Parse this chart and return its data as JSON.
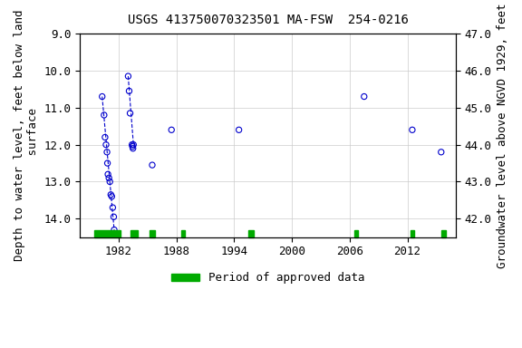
{
  "title": "USGS 413750070323501 MA-FSW  254-0216",
  "ylabel_left": "Depth to water level, feet below land\n surface",
  "ylabel_right": "Groundwater level above NGVD 1929, feet",
  "xlabel": "",
  "ylim_left": [
    14.5,
    9.0
  ],
  "ylim_right": [
    41.5,
    47.0
  ],
  "yticks_left": [
    9.0,
    10.0,
    11.0,
    12.0,
    13.0,
    14.0
  ],
  "yticks_right": [
    42.0,
    43.0,
    44.0,
    45.0,
    46.0,
    47.0
  ],
  "xlim": [
    1978,
    2017
  ],
  "xticks": [
    1982,
    1988,
    1994,
    2000,
    2006,
    2012
  ],
  "data_points": [
    [
      1980.3,
      10.7
    ],
    [
      1980.5,
      11.2
    ],
    [
      1980.6,
      11.8
    ],
    [
      1980.7,
      12.0
    ],
    [
      1980.8,
      12.2
    ],
    [
      1980.85,
      12.5
    ],
    [
      1980.9,
      12.8
    ],
    [
      1981.0,
      12.9
    ],
    [
      1981.1,
      13.0
    ],
    [
      1981.2,
      13.35
    ],
    [
      1981.3,
      13.4
    ],
    [
      1981.4,
      13.7
    ],
    [
      1981.5,
      13.95
    ],
    [
      1981.55,
      14.3
    ],
    [
      1981.6,
      14.45
    ],
    [
      1983.0,
      10.15
    ],
    [
      1983.1,
      10.55
    ],
    [
      1983.2,
      11.15
    ],
    [
      1983.4,
      12.0
    ],
    [
      1983.45,
      12.05
    ],
    [
      1983.5,
      12.1
    ],
    [
      1983.55,
      12.0
    ],
    [
      1985.5,
      12.55
    ],
    [
      1987.5,
      11.6
    ],
    [
      1994.5,
      11.6
    ],
    [
      2007.5,
      10.7
    ],
    [
      2012.5,
      11.6
    ],
    [
      2015.5,
      12.2
    ]
  ],
  "line_segments": [
    [
      [
        1980.3,
        1981.6
      ],
      [
        10.7,
        14.45
      ]
    ],
    [
      [
        1983.0,
        1983.55
      ],
      [
        10.15,
        12.0
      ]
    ]
  ],
  "approved_data_bars": [
    [
      1979.5,
      1982.2
    ],
    [
      1983.2,
      1984.0
    ],
    [
      1985.2,
      1985.8
    ],
    [
      1988.5,
      1988.9
    ],
    [
      1995.5,
      1996.0
    ],
    [
      2006.5,
      2006.9
    ],
    [
      2012.3,
      2012.7
    ],
    [
      2015.5,
      2016.0
    ]
  ],
  "point_color": "#0000cc",
  "line_color": "#0000cc",
  "approved_color": "#00aa00",
  "background_color": "#ffffff",
  "grid_color": "#cccccc",
  "title_fontsize": 10,
  "axis_fontsize": 9,
  "tick_fontsize": 9,
  "legend_label": "Period of approved data"
}
